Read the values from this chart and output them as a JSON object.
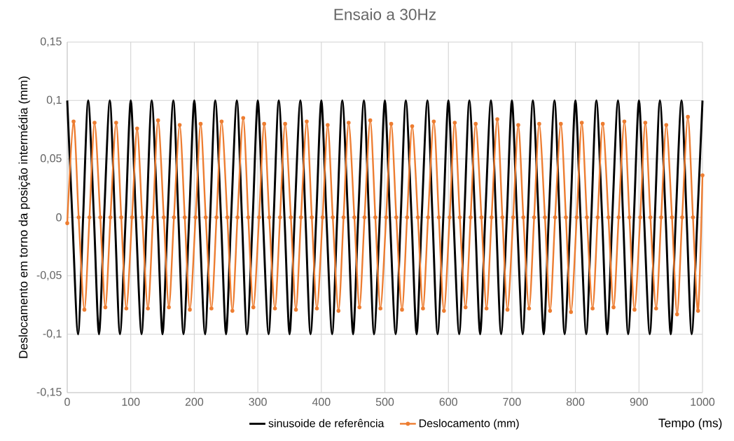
{
  "chart_data": {
    "type": "line",
    "title": "Ensaio a 30Hz",
    "xlabel": "Tempo (ms)",
    "ylabel": "Deslocamento em torno da posição intermédia (mm)",
    "xlim": [
      0,
      1000
    ],
    "xticks": [
      0,
      100,
      200,
      300,
      400,
      500,
      600,
      700,
      800,
      900,
      1000
    ],
    "ylim": [
      -0.15,
      0.15
    ],
    "yticks": [
      {
        "value": -0.15,
        "label": "-0,15"
      },
      {
        "value": -0.1,
        "label": "-0,1"
      },
      {
        "value": -0.05,
        "label": "-0,05"
      },
      {
        "value": 0,
        "label": "0"
      },
      {
        "value": 0.05,
        "label": "0,05"
      },
      {
        "value": 0.1,
        "label": "0,1"
      },
      {
        "value": 0.15,
        "label": "0,15"
      }
    ],
    "grid": true,
    "legend": "bottom",
    "series": [
      {
        "name": "sinusoide de referência",
        "color": "#000000",
        "marker": "none",
        "x": [
          0,
          8,
          17,
          25,
          33,
          42,
          50,
          58,
          67,
          75,
          83,
          92,
          100,
          108,
          117,
          125,
          133,
          142,
          150,
          158,
          167,
          175,
          183,
          192,
          200,
          208,
          217,
          225,
          233,
          242,
          250,
          258,
          267,
          275,
          283,
          292,
          300,
          308,
          317,
          325,
          333,
          342,
          350,
          358,
          367,
          375,
          383,
          392,
          400,
          408,
          417,
          425,
          433,
          442,
          450,
          458,
          467,
          475,
          483,
          492,
          500,
          508,
          517,
          525,
          533,
          542,
          550,
          558,
          567,
          575,
          583,
          592,
          600,
          608,
          617,
          625,
          633,
          642,
          650,
          658,
          667,
          675,
          683,
          692,
          700,
          708,
          717,
          725,
          733,
          742,
          750,
          758,
          767,
          775,
          783,
          792,
          800,
          808,
          817,
          825,
          833,
          842,
          850,
          858,
          867,
          875,
          883,
          892,
          900,
          908,
          917,
          925,
          933,
          942,
          950,
          958,
          967,
          975,
          983,
          992,
          1000
        ],
        "values": [
          0.1,
          0,
          -0.1,
          0,
          0.1,
          0,
          -0.1,
          0,
          0.1,
          0,
          -0.1,
          0,
          0.1,
          0,
          -0.1,
          0,
          0.1,
          0,
          -0.1,
          0,
          0.1,
          0,
          -0.1,
          0,
          0.1,
          0,
          -0.1,
          0,
          0.1,
          0,
          -0.1,
          0,
          0.1,
          0,
          -0.1,
          0,
          0.1,
          0,
          -0.1,
          0,
          0.1,
          0,
          -0.1,
          0,
          0.1,
          0,
          -0.1,
          0,
          0.1,
          0,
          -0.1,
          0,
          0.1,
          0,
          -0.1,
          0,
          0.1,
          0,
          -0.1,
          0,
          0.1,
          0,
          -0.1,
          0,
          0.1,
          0,
          -0.1,
          0,
          0.1,
          0,
          -0.1,
          0,
          0.1,
          0,
          -0.1,
          0,
          0.1,
          0,
          -0.1,
          0,
          0.1,
          0,
          -0.1,
          0,
          0.1,
          0,
          -0.1,
          0,
          0.1,
          0,
          -0.1,
          0,
          0.1,
          0,
          -0.1,
          0,
          0.1,
          0,
          -0.1,
          0,
          0.1,
          0,
          -0.1,
          0,
          0.1,
          0,
          -0.1,
          0,
          0.1,
          0,
          -0.1,
          0,
          0.1,
          0,
          -0.1,
          0,
          0.1,
          0,
          -0.1,
          0,
          0.1
        ]
      },
      {
        "name": "Deslocamento (mm)",
        "color": "#ed7d31",
        "marker": "circle",
        "x": [
          0,
          10,
          18,
          27,
          35,
          43,
          52,
          60,
          68,
          77,
          85,
          93,
          102,
          110,
          118,
          127,
          135,
          143,
          152,
          160,
          168,
          177,
          185,
          193,
          202,
          210,
          218,
          227,
          235,
          243,
          252,
          260,
          268,
          277,
          285,
          293,
          302,
          310,
          318,
          327,
          335,
          343,
          352,
          360,
          368,
          377,
          385,
          393,
          402,
          410,
          418,
          427,
          435,
          443,
          452,
          460,
          468,
          477,
          485,
          493,
          502,
          510,
          518,
          527,
          535,
          543,
          552,
          560,
          568,
          577,
          585,
          593,
          602,
          610,
          618,
          627,
          635,
          643,
          652,
          660,
          668,
          677,
          685,
          693,
          702,
          710,
          718,
          727,
          735,
          743,
          752,
          760,
          768,
          777,
          785,
          793,
          802,
          810,
          818,
          827,
          835,
          843,
          852,
          860,
          868,
          877,
          885,
          893,
          902,
          910,
          918,
          927,
          935,
          943,
          952,
          960,
          968,
          977,
          985,
          993,
          1000
        ],
        "values": [
          -0.005,
          0.082,
          0,
          -0.079,
          0,
          0.081,
          0,
          -0.077,
          0,
          0.081,
          0,
          -0.078,
          0,
          0.076,
          0,
          -0.078,
          0,
          0.083,
          0,
          -0.077,
          0,
          0.079,
          0,
          -0.079,
          0,
          0.08,
          0,
          -0.078,
          0,
          0.082,
          0,
          -0.08,
          0,
          0.085,
          0,
          -0.077,
          0,
          0.08,
          0,
          -0.078,
          0,
          0.08,
          0,
          -0.079,
          0,
          0.082,
          0,
          -0.078,
          0,
          0.079,
          0,
          -0.08,
          0,
          0.081,
          0,
          -0.077,
          0,
          0.083,
          0,
          -0.078,
          0,
          0.08,
          0,
          -0.079,
          0,
          0.078,
          0,
          -0.078,
          0,
          0.082,
          0,
          -0.08,
          0,
          0.081,
          0,
          -0.077,
          0,
          0.08,
          0,
          -0.078,
          0,
          0.084,
          0,
          -0.079,
          0,
          0.079,
          0,
          -0.078,
          0,
          0.08,
          0,
          -0.08,
          0,
          0.08,
          0,
          -0.081,
          0,
          0.081,
          0,
          -0.078,
          0,
          0.08,
          0,
          -0.077,
          0,
          0.082,
          0,
          -0.079,
          0,
          0.081,
          0,
          -0.078,
          0,
          0.079,
          0,
          -0.083,
          0,
          0.086,
          0,
          -0.08,
          0.036
        ]
      }
    ]
  }
}
